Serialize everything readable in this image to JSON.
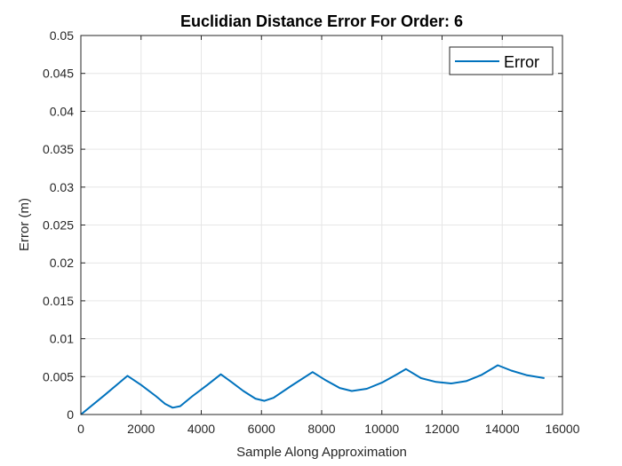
{
  "chart_data": {
    "type": "line",
    "title": "Euclidian Distance Error For Order: 6",
    "xlabel": "Sample Along Approximation",
    "ylabel": "Error (m)",
    "xlim": [
      0,
      16000
    ],
    "ylim": [
      0,
      0.05
    ],
    "x_ticks": [
      0,
      2000,
      4000,
      6000,
      8000,
      10000,
      12000,
      14000,
      16000
    ],
    "y_ticks": [
      0,
      0.005,
      0.01,
      0.015,
      0.02,
      0.025,
      0.03,
      0.035,
      0.04,
      0.045,
      0.05
    ],
    "x_tick_labels": [
      "0",
      "2000",
      "4000",
      "6000",
      "8000",
      "10000",
      "12000",
      "14000",
      "16000"
    ],
    "y_tick_labels": [
      "0",
      "0.005",
      "0.01",
      "0.015",
      "0.02",
      "0.025",
      "0.03",
      "0.035",
      "0.04",
      "0.045",
      "0.05"
    ],
    "grid": true,
    "legend_position": "top-right",
    "series": [
      {
        "name": "Error",
        "color": "#0072BD",
        "x": [
          0,
          800,
          1550,
          2000,
          2500,
          2800,
          3050,
          3300,
          3700,
          4200,
          4650,
          5000,
          5400,
          5800,
          6100,
          6400,
          7000,
          7700,
          8100,
          8600,
          9000,
          9500,
          10000,
          10500,
          10800,
          11300,
          11800,
          12300,
          12800,
          13300,
          13850,
          14300,
          14800,
          15400
        ],
        "values": [
          0,
          0.0026,
          0.0051,
          0.0039,
          0.0024,
          0.0014,
          0.0009,
          0.0011,
          0.0024,
          0.0039,
          0.0053,
          0.0043,
          0.0031,
          0.0021,
          0.0018,
          0.0022,
          0.0038,
          0.0056,
          0.0046,
          0.0035,
          0.0031,
          0.0034,
          0.0042,
          0.0053,
          0.006,
          0.0048,
          0.0043,
          0.0041,
          0.0044,
          0.0052,
          0.0065,
          0.0058,
          0.0052,
          0.0048
        ]
      }
    ]
  }
}
